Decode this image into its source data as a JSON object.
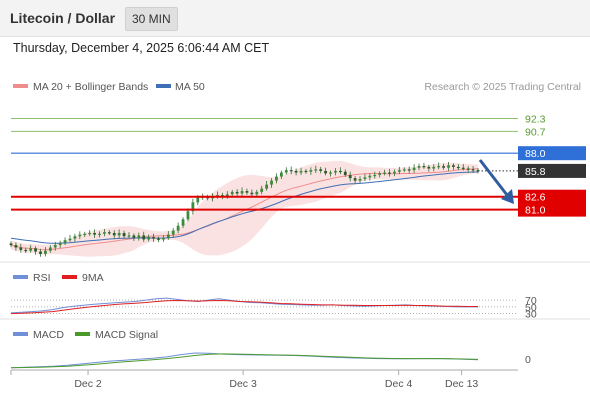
{
  "header": {
    "title": "Litecoin / Dollar",
    "timeframe": "30 MIN"
  },
  "datetime": "Thursday, December 4, 2025 6:06:44 AM CET",
  "credit": "Research © 2025 Trading Central",
  "colors": {
    "bollinger": "#f08c8c",
    "ma50": "#3f6fb5",
    "resistance_line": "#8fbf6a",
    "pivot_line": "#6c8fd0",
    "support_line": "#e02020",
    "rsi": "#6f8fd8",
    "rsi_ma": "#e02020",
    "macd": "#6f8fd8",
    "macd_signal": "#4a9a2a",
    "arrow": "#2f5da0",
    "candle": "#3c8a3c"
  },
  "chart_data": [
    {
      "type": "candlestick",
      "panel": "price",
      "legend": [
        {
          "name": "MA 20 + Bollinger Bands",
          "color": "#f08c8c"
        },
        {
          "name": "MA 50",
          "color": "#3f6fb5"
        }
      ],
      "levels": [
        {
          "value": 92.3,
          "label": "92.3",
          "role": "resistance",
          "color": "#8fbf6a"
        },
        {
          "value": 90.7,
          "label": "90.7",
          "role": "resistance",
          "color": "#8fbf6a"
        },
        {
          "value": 88.0,
          "label": "88.0",
          "role": "pivot",
          "color": "#2f6fd8"
        },
        {
          "value": 85.8,
          "label": "85.8",
          "role": "last",
          "color": "#333333"
        },
        {
          "value": 82.6,
          "label": "82.6",
          "role": "support",
          "color": "#e00000"
        },
        {
          "value": 81.0,
          "label": "81.0",
          "role": "support",
          "color": "#e00000"
        }
      ],
      "ylim": [
        74.5,
        94.6
      ],
      "close": [
        76.6,
        76.3,
        76.0,
        75.9,
        76.2,
        75.8,
        75.5,
        75.9,
        76.3,
        76.6,
        76.9,
        77.2,
        77.4,
        77.7,
        77.9,
        78.0,
        78.1,
        77.9,
        78.0,
        78.2,
        78.1,
        77.8,
        78.1,
        77.7,
        77.8,
        77.5,
        77.8,
        77.3,
        77.6,
        77.4,
        77.3,
        77.5,
        77.9,
        78.4,
        79.0,
        79.8,
        80.8,
        81.9,
        82.5,
        82.6,
        82.4,
        82.7,
        82.8,
        82.6,
        82.9,
        83.2,
        83.0,
        83.3,
        83.1,
        82.9,
        83.2,
        83.6,
        84.1,
        84.6,
        85.1,
        85.6,
        85.9,
        85.8,
        85.6,
        85.8,
        85.7,
        85.9,
        86.0,
        85.8,
        85.5,
        85.6,
        85.8,
        85.7,
        85.3,
        84.9,
        84.6,
        84.8,
        85.0,
        85.2,
        85.3,
        85.5,
        85.6,
        85.5,
        85.7,
        85.9,
        86.0,
        85.9,
        86.2,
        86.4,
        86.3,
        86.1,
        86.3,
        86.4,
        86.2,
        86.5,
        86.3,
        86.2,
        86.1,
        86.0,
        85.9,
        85.8
      ]
    },
    {
      "type": "line",
      "panel": "rsi",
      "legend": [
        {
          "name": "RSI",
          "color": "#6f8fd8"
        },
        {
          "name": "9MA",
          "color": "#e02020"
        }
      ],
      "levels": [
        {
          "value": 70,
          "label": "70"
        },
        {
          "value": 50,
          "label": "50"
        },
        {
          "value": 30,
          "label": "30"
        }
      ],
      "ylim": [
        20,
        100
      ],
      "series": [
        {
          "name": "RSI",
          "values": [
            32,
            34,
            36,
            38,
            42,
            48,
            52,
            55,
            58,
            60,
            62,
            64,
            66,
            70,
            74,
            76,
            72,
            68,
            66,
            70,
            74,
            70,
            66,
            63,
            62,
            60,
            58,
            57,
            56,
            55,
            55,
            56,
            54,
            53,
            52,
            53,
            54,
            55,
            56,
            54,
            53,
            52,
            51,
            50,
            50,
            50
          ]
        },
        {
          "name": "9MA",
          "values": [
            30,
            31,
            32,
            34,
            36,
            40,
            44,
            48,
            51,
            54,
            57,
            59,
            61,
            63,
            66,
            68,
            69,
            68,
            67,
            68,
            69,
            68,
            66,
            65,
            64,
            62,
            60,
            59,
            58,
            57,
            56,
            56,
            55,
            55,
            54,
            54,
            54,
            54,
            55,
            54,
            54,
            53,
            52,
            52,
            51,
            51
          ]
        }
      ]
    },
    {
      "type": "line",
      "panel": "macd",
      "legend": [
        {
          "name": "MACD",
          "color": "#6f8fd8"
        },
        {
          "name": "MACD Signal",
          "color": "#4a9a2a"
        }
      ],
      "levels": [
        {
          "value": 0,
          "label": "0"
        }
      ],
      "ylim": [
        -1.2,
        1.8
      ],
      "series": [
        {
          "name": "MACD",
          "values": [
            -0.95,
            -0.9,
            -0.85,
            -0.8,
            -0.7,
            -0.55,
            -0.4,
            -0.25,
            -0.15,
            -0.05,
            0.05,
            0.2,
            0.45,
            0.62,
            0.6,
            0.5,
            0.45,
            0.42,
            0.4,
            0.38,
            0.35,
            0.3,
            0.22,
            0.15,
            0.1,
            0.05,
            0.02,
            0.0,
            0.0,
            0.02,
            0.03,
            0.0,
            -0.05,
            -0.1
          ]
        },
        {
          "name": "MACD Signal",
          "values": [
            -0.95,
            -0.93,
            -0.9,
            -0.86,
            -0.8,
            -0.7,
            -0.58,
            -0.45,
            -0.32,
            -0.2,
            -0.1,
            0.02,
            0.18,
            0.35,
            0.48,
            0.52,
            0.5,
            0.47,
            0.44,
            0.41,
            0.38,
            0.34,
            0.28,
            0.22,
            0.16,
            0.1,
            0.06,
            0.03,
            0.02,
            0.02,
            0.02,
            0.01,
            -0.02,
            -0.06
          ]
        }
      ]
    }
  ],
  "x_axis": {
    "ticks": [
      {
        "label": "Dec 2",
        "pos": 0.165
      },
      {
        "label": "Dec 3",
        "pos": 0.497
      },
      {
        "label": "Dec 4",
        "pos": 0.83
      },
      {
        "label": "Dec 13",
        "pos": 0.965
      }
    ]
  }
}
